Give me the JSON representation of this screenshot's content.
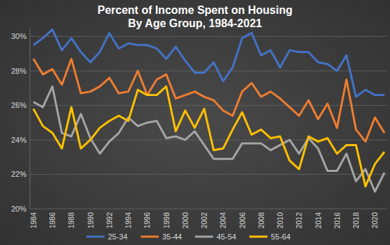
{
  "chart_data": {
    "type": "line",
    "title": "Percent of Income Spent on Housing",
    "subtitle": "By Age Group, 1984-2021",
    "categories": [
      "1984",
      null,
      "1986",
      null,
      "1988",
      null,
      "1990",
      null,
      "1992",
      null,
      "1994",
      null,
      "1996",
      null,
      "1998",
      null,
      "2000",
      null,
      "2002",
      null,
      "2004",
      null,
      "2006",
      null,
      "2008",
      null,
      "2010",
      null,
      "2012",
      null,
      "2014",
      null,
      "2016",
      null,
      "2018",
      null,
      "2020",
      null
    ],
    "series": [
      {
        "name": "25-34",
        "color": "#4472c4",
        "values": [
          29.5,
          29.9,
          30.4,
          29.2,
          29.9,
          29.1,
          28.5,
          29.1,
          30.2,
          29.3,
          29.6,
          29.5,
          29.5,
          29.3,
          28.7,
          29.4,
          28.6,
          27.9,
          27.9,
          28.5,
          27.4,
          28.2,
          29.9,
          30.2,
          28.9,
          29.2,
          28.2,
          29.2,
          29.1,
          29.1,
          28.5,
          28.4,
          28.0,
          28.9,
          26.5,
          26.9,
          26.6,
          26.6
        ]
      },
      {
        "name": "35-44",
        "color": "#ed7d31",
        "values": [
          28.7,
          27.8,
          28.1,
          27.2,
          28.7,
          26.7,
          26.8,
          27.1,
          27.6,
          26.7,
          26.8,
          28.0,
          26.6,
          27.5,
          27.8,
          26.4,
          26.6,
          26.8,
          26.5,
          26.3,
          25.7,
          25.4,
          26.8,
          27.3,
          26.5,
          26.8,
          26.4,
          25.9,
          25.4,
          26.3,
          25.2,
          26.1,
          24.7,
          27.5,
          24.6,
          23.9,
          25.3,
          24.4
        ]
      },
      {
        "name": "45-54",
        "color": "#a5a5a5",
        "values": [
          26.2,
          25.9,
          27.1,
          24.4,
          24.2,
          25.5,
          24.1,
          23.2,
          23.9,
          24.4,
          25.3,
          24.8,
          25.0,
          25.1,
          24.1,
          24.2,
          24.0,
          24.5,
          23.7,
          22.9,
          22.9,
          22.9,
          23.8,
          23.8,
          23.8,
          23.4,
          23.7,
          24.0,
          23.2,
          24.1,
          23.5,
          22.2,
          22.2,
          23.2,
          21.6,
          22.3,
          21.0,
          22.1
        ]
      },
      {
        "name": "55-64",
        "color": "#ffc000",
        "values": [
          25.8,
          24.8,
          24.4,
          23.5,
          25.9,
          23.5,
          24.0,
          24.7,
          25.1,
          25.4,
          25.1,
          26.9,
          26.6,
          26.6,
          27.1,
          24.5,
          25.7,
          24.7,
          25.8,
          23.4,
          23.5,
          24.6,
          25.6,
          24.3,
          24.6,
          24.1,
          24.2,
          22.8,
          22.3,
          24.2,
          23.9,
          24.1,
          23.2,
          23.7,
          23.7,
          21.3,
          22.6,
          23.3
        ]
      }
    ],
    "ylim": [
      20,
      30.5
    ],
    "yticks": [
      {
        "value": 20,
        "label": "20%"
      },
      {
        "value": 22,
        "label": "22%"
      },
      {
        "value": 24,
        "label": "24%"
      },
      {
        "value": 26,
        "label": "26%"
      },
      {
        "value": 28,
        "label": "28%"
      },
      {
        "value": 30,
        "label": "30%"
      }
    ],
    "grid": true,
    "legend": "bottom"
  }
}
